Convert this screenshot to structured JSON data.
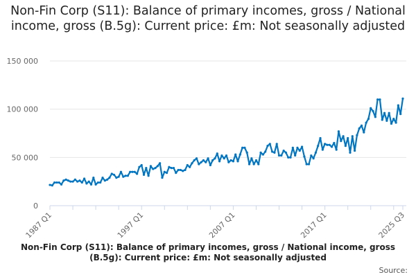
{
  "chart_data": {
    "type": "line",
    "title": "Non-Fin Corp (S11): Balance of primary incomes, gross / National income, gross (B.5g): Current price: £m: Not seasonally adjusted",
    "xlabel": "",
    "ylabel": "",
    "x_range": [
      "1987 Q1",
      "2025 Q3"
    ],
    "x_frequency": "quarterly",
    "x_tick_labels": [
      "1987 Q1",
      "1997 Q1",
      "2007 Q1",
      "2017 Q1",
      "2025 Q3"
    ],
    "y_tick_labels": [
      "0",
      "50 000",
      "100 000",
      "150 000"
    ],
    "y_ticks": [
      0,
      50000,
      100000,
      150000
    ],
    "ylim": [
      0,
      150000
    ],
    "grid": true,
    "legend_position": "bottom",
    "color": "#0075c2",
    "series": [
      {
        "name": "Non-Fin Corp (S11): Balance of primary incomes, gross / National income, gross (B.5g): Current price: £m: Not seasonally adjusted",
        "values": [
          21500,
          21000,
          24000,
          24000,
          24000,
          22000,
          26000,
          27000,
          26000,
          25000,
          25000,
          27000,
          25000,
          26000,
          24000,
          28000,
          23000,
          25000,
          22000,
          29000,
          22000,
          24000,
          24000,
          29000,
          26000,
          27000,
          29000,
          33000,
          32000,
          29000,
          30000,
          35000,
          30000,
          31000,
          31000,
          35000,
          35000,
          35000,
          33000,
          40000,
          42000,
          32000,
          39000,
          31000,
          41000,
          38000,
          39000,
          41000,
          44000,
          29000,
          35000,
          34000,
          40000,
          39000,
          39000,
          34000,
          37000,
          37000,
          36000,
          37000,
          42000,
          40000,
          44000,
          47000,
          49000,
          43000,
          45000,
          47000,
          45000,
          49000,
          42000,
          47000,
          49000,
          54000,
          46000,
          52000,
          49000,
          52000,
          45000,
          47000,
          46000,
          53000,
          46000,
          53000,
          60000,
          60000,
          55000,
          43000,
          49000,
          43000,
          47000,
          43000,
          55000,
          53000,
          56000,
          62000,
          64000,
          56000,
          55000,
          64000,
          52000,
          52000,
          57000,
          55000,
          50000,
          50000,
          60000,
          52000,
          60000,
          57000,
          61000,
          51000,
          43000,
          43000,
          52000,
          49000,
          55000,
          62000,
          70000,
          58000,
          64000,
          63000,
          63000,
          61000,
          65000,
          58000,
          77000,
          67000,
          72000,
          62000,
          70000,
          55000,
          72000,
          57000,
          73000,
          80000,
          83000,
          76000,
          86000,
          90000,
          101000,
          98000,
          92000,
          110000,
          110000,
          89000,
          96000,
          88000,
          96000,
          85000,
          90000,
          86000,
          104000,
          95000,
          111000
        ]
      }
    ]
  },
  "footer": {
    "source_label": "Source:"
  }
}
